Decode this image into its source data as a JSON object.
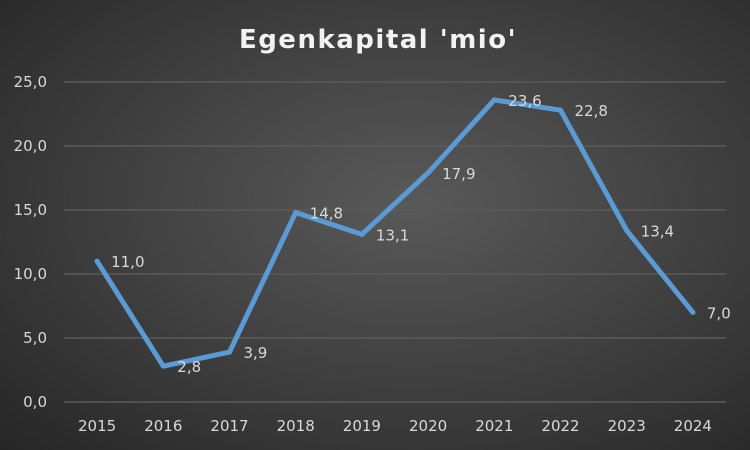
{
  "chart_data": {
    "type": "line",
    "title": "Egenkapital 'mio'",
    "xlabel": "",
    "ylabel": "",
    "categories": [
      "2015",
      "2016",
      "2017",
      "2018",
      "2019",
      "2020",
      "2021",
      "2022",
      "2023",
      "2024"
    ],
    "series": [
      {
        "name": "Egenkapital",
        "values": [
          11.0,
          2.8,
          3.9,
          14.8,
          13.1,
          17.9,
          23.6,
          22.8,
          13.4,
          7.0
        ],
        "labels": [
          "11,0",
          "2,8",
          "3,9",
          "14,8",
          "13,1",
          "17,9",
          "23,6",
          "22,8",
          "13,4",
          "7,0"
        ]
      }
    ],
    "ylim": [
      0,
      25
    ],
    "yticks": [
      0,
      5,
      10,
      15,
      20,
      25
    ],
    "ytick_labels": [
      "0,0",
      "5,0",
      "10,0",
      "15,0",
      "20,0",
      "25,0"
    ],
    "grid": true,
    "legend": "none",
    "colors": {
      "line": "#5b9bd5",
      "text": "#d9d9d9",
      "grid": "#5a5a5a"
    }
  }
}
